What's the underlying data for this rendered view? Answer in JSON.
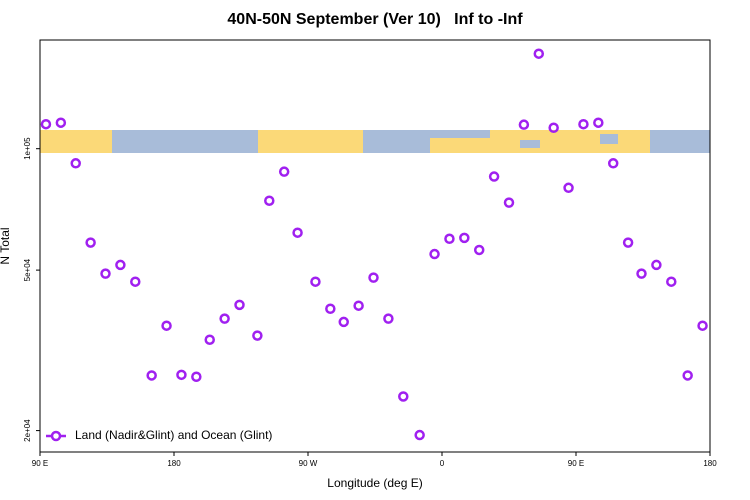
{
  "chart_data": {
    "type": "scatter",
    "title": "40N-50N September (Ver 10)   Inf to -Inf",
    "x_label": "Longitude (deg E)",
    "y_label": "N Total",
    "log_y": true,
    "legend_position": "bottom-left",
    "xlim": [
      90,
      540
    ],
    "xticks": [
      {
        "value": 90,
        "label": "90 E"
      },
      {
        "value": 180,
        "label": "180"
      },
      {
        "value": 270,
        "label": "90 W"
      },
      {
        "value": 360,
        "label": "0"
      },
      {
        "value": 450,
        "label": "90 E"
      },
      {
        "value": 540,
        "label": "180"
      }
    ],
    "ylim": [
      17700,
      186000
    ],
    "yticks": [
      {
        "value": 20000,
        "label": "2e+04"
      },
      {
        "value": 50000,
        "label": "5e+04"
      },
      {
        "value": 100000,
        "label": "1e+05"
      }
    ],
    "series": [
      {
        "name": "Land (Nadir&Glint) and Ocean (Glint)",
        "color": "#a020f0",
        "x": [
          94,
          104,
          114,
          124,
          134,
          144,
          154,
          165,
          175,
          185,
          195,
          204,
          214,
          224,
          236,
          244,
          254,
          263,
          275,
          285,
          294,
          304,
          314,
          324,
          334,
          345,
          355,
          365,
          375,
          385,
          395,
          405,
          415,
          425,
          435,
          445,
          455,
          465,
          475,
          485,
          494,
          504,
          514,
          525,
          535
        ],
        "values": [
          115000,
          116000,
          92000,
          58500,
          49000,
          51500,
          46800,
          27400,
          36400,
          27500,
          27200,
          33600,
          37900,
          41000,
          34400,
          74300,
          87700,
          61900,
          46800,
          40100,
          37200,
          40800,
          47900,
          37900,
          24300,
          19500,
          54800,
          59800,
          60100,
          56100,
          85300,
          73500,
          114700,
          172000,
          112700,
          80000,
          115000,
          116000,
          92000,
          58500,
          49000,
          51500,
          46800,
          27400,
          36400
        ]
      }
    ]
  }
}
